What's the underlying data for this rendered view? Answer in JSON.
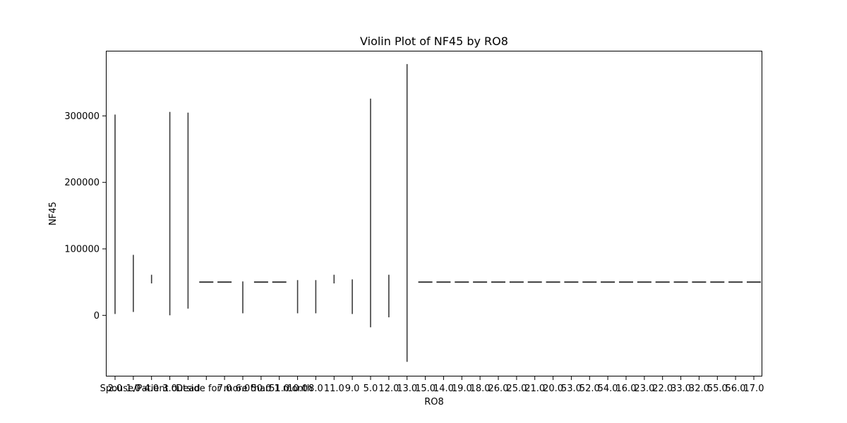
{
  "chart_data": {
    "type": "violin",
    "title": "Violin Plot of NF45 by RO8",
    "xlabel": "RO8",
    "ylabel": "NF45",
    "ylim": [
      -92000,
      398000
    ],
    "yticks": [
      0,
      100000,
      200000,
      300000
    ],
    "ytick_labels": [
      "0",
      "100000",
      "200000",
      "300000"
    ],
    "categories": [
      "2.0",
      "1.0",
      "4.0",
      "3.0",
      "Dead",
      "Spouse/Patient outside for more than 1 month",
      "7.0",
      "6.0",
      "50.0",
      "51.0",
      "10.0",
      "8.0",
      "11.0",
      "9.0",
      "5.0",
      "12.0",
      "13.0",
      "15.0",
      "14.0",
      "19.0",
      "18.0",
      "26.0",
      "25.0",
      "21.0",
      "20.0",
      "53.0",
      "52.0",
      "54.0",
      "16.0",
      "23.0",
      "22.0",
      "33.0",
      "32.0",
      "55.0",
      "56.0",
      "17.0"
    ],
    "visible_tick_labels": [
      "2.0",
      "1.0",
      "4.0",
      "3.0",
      "Dead",
      "Spouse/Patient outside for more than 1 month",
      "7.0",
      "6.0",
      "50.0",
      "51.0",
      "10.0",
      "8.0",
      "11.0",
      "9.0",
      "5.0",
      "12.0",
      "13.0",
      "15.0",
      "14.0",
      "19.0",
      "18.0",
      "26.0",
      "25.0",
      "21.0",
      "20.0",
      "53.0",
      "52.0",
      "54.0",
      "16.0",
      "23.0",
      "22.0",
      "33.0",
      "32.0",
      "55.0",
      "56.0",
      "17.0"
    ],
    "ranges": [
      {
        "min": 2000,
        "max": 302000
      },
      {
        "min": 5000,
        "max": 91000
      },
      {
        "min": 48000,
        "max": 61000
      },
      {
        "min": 0,
        "max": 306000
      },
      {
        "min": 10000,
        "max": 305000
      },
      {
        "min": 50000,
        "max": 50000
      },
      {
        "min": 50000,
        "max": 50000
      },
      {
        "min": 3000,
        "max": 51000
      },
      {
        "min": 50000,
        "max": 50000
      },
      {
        "min": 50000,
        "max": 50000
      },
      {
        "min": 3000,
        "max": 53000
      },
      {
        "min": 3000,
        "max": 53000
      },
      {
        "min": 48000,
        "max": 61000
      },
      {
        "min": 2000,
        "max": 54000
      },
      {
        "min": -18000,
        "max": 326000
      },
      {
        "min": -3000,
        "max": 61000
      },
      {
        "min": -70000,
        "max": 378000
      },
      {
        "min": 50000,
        "max": 50000
      },
      {
        "min": 50000,
        "max": 50000
      },
      {
        "min": 50000,
        "max": 50000
      },
      {
        "min": 50000,
        "max": 50000
      },
      {
        "min": 50000,
        "max": 50000
      },
      {
        "min": 50000,
        "max": 50000
      },
      {
        "min": 50000,
        "max": 50000
      },
      {
        "min": 50000,
        "max": 50000
      },
      {
        "min": 50000,
        "max": 50000
      },
      {
        "min": 50000,
        "max": 50000
      },
      {
        "min": 50000,
        "max": 50000
      },
      {
        "min": 50000,
        "max": 50000
      },
      {
        "min": 50000,
        "max": 50000
      },
      {
        "min": 50000,
        "max": 50000
      },
      {
        "min": 50000,
        "max": 50000
      },
      {
        "min": 50000,
        "max": 50000
      },
      {
        "min": 50000,
        "max": 50000
      },
      {
        "min": 50000,
        "max": 50000
      },
      {
        "min": 50000,
        "max": 50000
      }
    ],
    "line_color": "#3d3d3d",
    "grid": false
  }
}
